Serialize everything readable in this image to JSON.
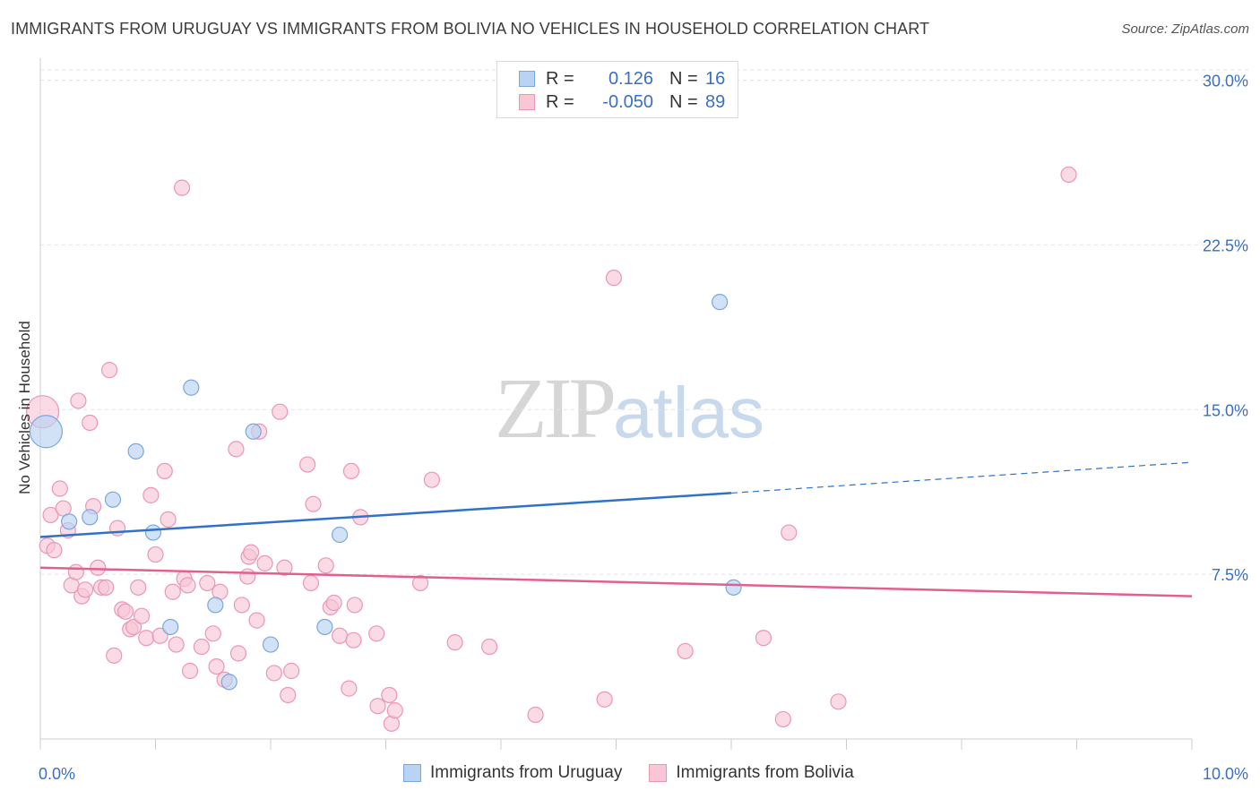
{
  "title": "IMMIGRANTS FROM URUGUAY VS IMMIGRANTS FROM BOLIVIA NO VEHICLES IN HOUSEHOLD CORRELATION CHART",
  "source": "Source: ZipAtlas.com",
  "watermark": {
    "zip": "ZIP",
    "atlas": "atlas"
  },
  "legend": {
    "uruguay": {
      "r_label": "R =",
      "r_value": "0.126",
      "n_label": "N =",
      "n_value": "16"
    },
    "bolivia": {
      "r_label": "R =",
      "r_value": "-0.050",
      "n_label": "N =",
      "n_value": "89"
    }
  },
  "colors": {
    "uruguay_fill": "#b8d3f3",
    "uruguay_stroke": "#7aa7df",
    "uruguay_line": "#2f72c8",
    "bolivia_fill": "#f8c6d5",
    "bolivia_stroke": "#ec97b1",
    "bolivia_line": "#e0608e",
    "tick_label": "#3a6fc4",
    "grid": "#e3e3e3"
  },
  "chart_data": {
    "type": "scatter",
    "title": "IMMIGRANTS FROM URUGUAY VS IMMIGRANTS FROM BOLIVIA NO VEHICLES IN HOUSEHOLD CORRELATION CHART",
    "xlabel": "",
    "ylabel": "No Vehicles in Household",
    "xlim": [
      0,
      10
    ],
    "ylim": [
      0,
      31
    ],
    "x_tick_labels": [
      "0.0%",
      "10.0%"
    ],
    "y_ticks": [
      7.5,
      15.0,
      22.5,
      30.0
    ],
    "y_tick_labels": [
      "7.5%",
      "15.0%",
      "22.5%",
      "30.0%"
    ],
    "grid": true,
    "legend_position": "top-center",
    "series": [
      {
        "name": "Immigrants from Uruguay",
        "points": [
          {
            "x": 0.05,
            "y": 14.0,
            "big": true
          },
          {
            "x": 0.25,
            "y": 9.9
          },
          {
            "x": 0.43,
            "y": 10.1
          },
          {
            "x": 0.63,
            "y": 10.9
          },
          {
            "x": 0.83,
            "y": 13.1
          },
          {
            "x": 0.98,
            "y": 9.4
          },
          {
            "x": 1.13,
            "y": 5.1
          },
          {
            "x": 1.31,
            "y": 16.0
          },
          {
            "x": 1.52,
            "y": 6.1
          },
          {
            "x": 1.64,
            "y": 2.6
          },
          {
            "x": 1.85,
            "y": 14.0
          },
          {
            "x": 2.0,
            "y": 4.3
          },
          {
            "x": 2.47,
            "y": 5.1
          },
          {
            "x": 2.6,
            "y": 9.3
          },
          {
            "x": 5.9,
            "y": 19.9
          },
          {
            "x": 6.02,
            "y": 6.9
          }
        ],
        "trend": {
          "x0": 0.0,
          "y0": 9.2,
          "x1": 6.0,
          "y1": 11.2,
          "dashed_to_x": 10.0,
          "dashed_to_y": 12.6
        }
      },
      {
        "name": "Immigrants from Bolivia",
        "points": [
          {
            "x": 0.02,
            "y": 14.9,
            "big": true
          },
          {
            "x": 0.06,
            "y": 8.8
          },
          {
            "x": 0.09,
            "y": 10.2
          },
          {
            "x": 0.12,
            "y": 8.6
          },
          {
            "x": 0.17,
            "y": 11.4
          },
          {
            "x": 0.2,
            "y": 10.5
          },
          {
            "x": 0.24,
            "y": 9.5
          },
          {
            "x": 0.27,
            "y": 7.0
          },
          {
            "x": 0.31,
            "y": 7.6
          },
          {
            "x": 0.33,
            "y": 15.4
          },
          {
            "x": 0.36,
            "y": 6.5
          },
          {
            "x": 0.39,
            "y": 6.8
          },
          {
            "x": 0.43,
            "y": 14.4
          },
          {
            "x": 0.46,
            "y": 10.6
          },
          {
            "x": 0.5,
            "y": 7.8
          },
          {
            "x": 0.53,
            "y": 6.9
          },
          {
            "x": 0.57,
            "y": 6.9
          },
          {
            "x": 0.6,
            "y": 16.8
          },
          {
            "x": 0.64,
            "y": 3.8
          },
          {
            "x": 0.67,
            "y": 9.6
          },
          {
            "x": 0.71,
            "y": 5.9
          },
          {
            "x": 0.74,
            "y": 5.8
          },
          {
            "x": 0.78,
            "y": 5.0
          },
          {
            "x": 0.81,
            "y": 5.1
          },
          {
            "x": 0.85,
            "y": 6.9
          },
          {
            "x": 0.88,
            "y": 5.6
          },
          {
            "x": 0.92,
            "y": 4.6
          },
          {
            "x": 0.96,
            "y": 11.1
          },
          {
            "x": 1.0,
            "y": 8.4
          },
          {
            "x": 1.04,
            "y": 4.7
          },
          {
            "x": 1.08,
            "y": 12.2
          },
          {
            "x": 1.11,
            "y": 10.0
          },
          {
            "x": 1.15,
            "y": 6.7
          },
          {
            "x": 1.18,
            "y": 4.3
          },
          {
            "x": 1.23,
            "y": 25.1
          },
          {
            "x": 1.25,
            "y": 7.3
          },
          {
            "x": 1.28,
            "y": 7.0
          },
          {
            "x": 1.3,
            "y": 3.1
          },
          {
            "x": 1.4,
            "y": 4.2
          },
          {
            "x": 1.45,
            "y": 7.1
          },
          {
            "x": 1.5,
            "y": 4.8
          },
          {
            "x": 1.53,
            "y": 3.3
          },
          {
            "x": 1.56,
            "y": 6.7
          },
          {
            "x": 1.6,
            "y": 2.7
          },
          {
            "x": 1.7,
            "y": 13.2
          },
          {
            "x": 1.72,
            "y": 3.9
          },
          {
            "x": 1.75,
            "y": 6.1
          },
          {
            "x": 1.8,
            "y": 7.4
          },
          {
            "x": 1.81,
            "y": 8.3
          },
          {
            "x": 1.83,
            "y": 8.5
          },
          {
            "x": 1.88,
            "y": 5.4
          },
          {
            "x": 1.9,
            "y": 14.0
          },
          {
            "x": 1.95,
            "y": 8.0
          },
          {
            "x": 2.03,
            "y": 3.0
          },
          {
            "x": 2.08,
            "y": 14.9
          },
          {
            "x": 2.12,
            "y": 7.8
          },
          {
            "x": 2.15,
            "y": 2.0
          },
          {
            "x": 2.18,
            "y": 3.1
          },
          {
            "x": 2.32,
            "y": 12.5
          },
          {
            "x": 2.35,
            "y": 7.1
          },
          {
            "x": 2.37,
            "y": 10.7
          },
          {
            "x": 2.48,
            "y": 7.9
          },
          {
            "x": 2.52,
            "y": 6.0
          },
          {
            "x": 2.55,
            "y": 6.2
          },
          {
            "x": 2.6,
            "y": 4.7
          },
          {
            "x": 2.68,
            "y": 2.3
          },
          {
            "x": 2.7,
            "y": 12.2
          },
          {
            "x": 2.72,
            "y": 4.5
          },
          {
            "x": 2.73,
            "y": 6.1
          },
          {
            "x": 2.78,
            "y": 10.1
          },
          {
            "x": 2.92,
            "y": 4.8
          },
          {
            "x": 2.93,
            "y": 1.5
          },
          {
            "x": 3.03,
            "y": 2.0
          },
          {
            "x": 3.05,
            "y": 0.7
          },
          {
            "x": 3.08,
            "y": 1.3
          },
          {
            "x": 3.3,
            "y": 7.1
          },
          {
            "x": 3.4,
            "y": 11.8
          },
          {
            "x": 3.6,
            "y": 4.4
          },
          {
            "x": 3.9,
            "y": 4.2
          },
          {
            "x": 4.3,
            "y": 1.1
          },
          {
            "x": 4.9,
            "y": 1.8
          },
          {
            "x": 4.98,
            "y": 21.0
          },
          {
            "x": 5.6,
            "y": 4.0
          },
          {
            "x": 6.28,
            "y": 4.6
          },
          {
            "x": 6.45,
            "y": 0.9
          },
          {
            "x": 6.5,
            "y": 9.4
          },
          {
            "x": 6.93,
            "y": 1.7
          },
          {
            "x": 8.93,
            "y": 25.7
          }
        ],
        "trend": {
          "x0": 0.0,
          "y0": 7.8,
          "x1": 10.0,
          "y1": 6.5
        }
      }
    ]
  },
  "bottom_legend": [
    "Immigrants from Uruguay",
    "Immigrants from Bolivia"
  ]
}
